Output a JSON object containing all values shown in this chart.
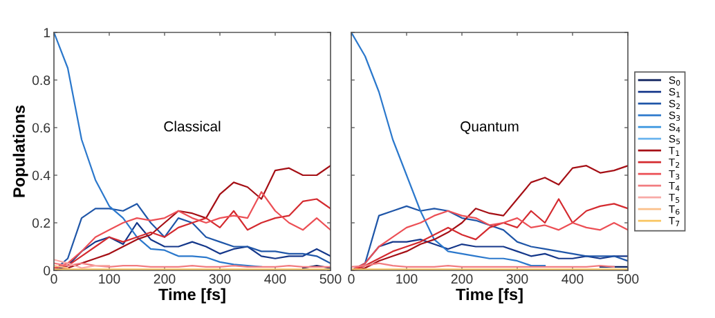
{
  "chart_data": [
    {
      "type": "line",
      "ylabel": "Populations",
      "xlabel": "Time [fs]",
      "annotations": [
        "Classical"
      ],
      "grid": false,
      "x": [
        0,
        25,
        50,
        75,
        100,
        125,
        150,
        175,
        200,
        225,
        250,
        275,
        300,
        325,
        350,
        375,
        400,
        425,
        450,
        475,
        500
      ],
      "xlim": [
        0,
        500
      ],
      "xticks": [
        0,
        100,
        200,
        300,
        400,
        500
      ],
      "ylim": [
        0,
        1
      ],
      "yticks": [
        0,
        0.2,
        0.4,
        0.6,
        0.8,
        1
      ],
      "series": [
        {
          "color": "#0b1f5c",
          "values": [
            null,
            null,
            null,
            null,
            null,
            null,
            null,
            null,
            null,
            null,
            null,
            null,
            null,
            null,
            null,
            null,
            null,
            null,
            0.01,
            0.02,
            0.01
          ]
        },
        {
          "color": "#14378a",
          "values": [
            0,
            0.02,
            0.08,
            0.12,
            0.14,
            0.11,
            0.2,
            0.13,
            0.1,
            0.1,
            0.12,
            0.1,
            0.07,
            0.09,
            0.1,
            0.06,
            0.05,
            0.06,
            0.06,
            0.09,
            0.06
          ]
        },
        {
          "color": "#1f56a8",
          "values": [
            0,
            0.05,
            0.22,
            0.26,
            0.26,
            0.25,
            0.28,
            0.2,
            0.14,
            0.22,
            0.2,
            0.14,
            0.12,
            0.1,
            0.1,
            0.08,
            0.08,
            0.07,
            0.07,
            0.06,
            0.03
          ]
        },
        {
          "color": "#2b78cc",
          "values": [
            1,
            0.85,
            0.55,
            0.38,
            0.27,
            0.22,
            0.14,
            0.09,
            0.085,
            0.06,
            0.06,
            0.055,
            0.035,
            0.025,
            0.02,
            0.015,
            null,
            null,
            null,
            null,
            null
          ]
        },
        {
          "color": "#3a96e0",
          "values": [
            null,
            null,
            null,
            null,
            null,
            null,
            null,
            null,
            null,
            null,
            null,
            null,
            null,
            null,
            null,
            null,
            null,
            null,
            null,
            null,
            null
          ]
        },
        {
          "color": "#69b3ee",
          "values": [
            null,
            null,
            null,
            null,
            null,
            null,
            null,
            null,
            null,
            null,
            null,
            null,
            null,
            null,
            null,
            null,
            null,
            null,
            null,
            null,
            null
          ]
        },
        {
          "color": "#a50f15",
          "values": [
            0,
            0.01,
            0.03,
            0.05,
            0.07,
            0.1,
            0.13,
            0.15,
            0.2,
            0.25,
            0.24,
            0.22,
            0.32,
            0.37,
            0.35,
            0.3,
            0.42,
            0.43,
            0.4,
            0.4,
            0.44
          ]
        },
        {
          "color": "#d42a2f",
          "values": [
            0.01,
            0.02,
            0.06,
            0.1,
            0.14,
            0.12,
            0.14,
            0.16,
            0.14,
            0.18,
            0.2,
            0.22,
            0.18,
            0.25,
            0.17,
            0.2,
            0.22,
            0.23,
            0.29,
            0.3,
            0.26
          ]
        },
        {
          "color": "#ec4f55",
          "values": [
            0.01,
            0.03,
            0.08,
            0.14,
            0.17,
            0.2,
            0.22,
            0.21,
            0.22,
            0.25,
            0.22,
            0.2,
            0.22,
            0.23,
            0.22,
            0.33,
            0.25,
            0.2,
            0.17,
            0.22,
            0.17
          ]
        },
        {
          "color": "#f27c80",
          "values": [
            0.03,
            0.02,
            0.03,
            0.02,
            0.015,
            0.02,
            0.02,
            0.015,
            0.015,
            0.015,
            0.02,
            0.015,
            0.015,
            0.02,
            0.015,
            0.015,
            0.015,
            0.02,
            0.015,
            0.015,
            0.015
          ]
        },
        {
          "color": "#f8a9a6",
          "values": [
            0.045,
            0.03,
            0.01,
            0.02,
            0.02,
            null,
            null,
            null,
            null,
            null,
            null,
            null,
            null,
            null,
            null,
            null,
            null,
            null,
            null,
            null,
            null
          ]
        },
        {
          "color": "#fbc08a",
          "values": [
            0.02,
            0.01,
            null,
            null,
            null,
            null,
            null,
            null,
            null,
            null,
            null,
            null,
            null,
            null,
            null,
            null,
            null,
            null,
            null,
            null,
            null
          ]
        },
        {
          "color": "#f9c560",
          "values": [
            0.005,
            0.005,
            0.005,
            0.005,
            0.005,
            0.005,
            0.005,
            0.005,
            0.005,
            0.005,
            0.005,
            0.005,
            0.005,
            0.005,
            0.005,
            0.005,
            0.005,
            0.005,
            0.005,
            0.005,
            0.005
          ]
        }
      ]
    },
    {
      "type": "line",
      "xlabel": "Time [fs]",
      "annotations": [
        "Quantum"
      ],
      "legend": "right",
      "grid": false,
      "tick_labels": "x",
      "x": [
        0,
        25,
        50,
        75,
        100,
        125,
        150,
        175,
        200,
        225,
        250,
        275,
        300,
        325,
        350,
        375,
        400,
        425,
        450,
        475,
        500
      ],
      "xlim": [
        0,
        500
      ],
      "xticks": [
        0,
        100,
        200,
        300,
        400,
        500
      ],
      "ylim": [
        0,
        1
      ],
      "yticks": [
        0,
        0.2,
        0.4,
        0.6,
        0.8,
        1
      ],
      "series": [
        {
          "name": "S$_{0}$",
          "color": "#0b1f5c",
          "values": [
            null,
            null,
            null,
            null,
            null,
            null,
            null,
            null,
            null,
            null,
            null,
            null,
            null,
            null,
            null,
            null,
            null,
            null,
            0.015,
            0.015,
            0.015
          ]
        },
        {
          "name": "S$_{1}$",
          "color": "#14378a",
          "values": [
            0,
            0.03,
            0.1,
            0.12,
            0.12,
            0.13,
            0.11,
            0.09,
            0.11,
            0.1,
            0.1,
            0.1,
            0.08,
            0.06,
            0.07,
            0.05,
            0.05,
            0.06,
            0.05,
            0.06,
            0.06
          ]
        },
        {
          "name": "S$_{2}$",
          "color": "#1f56a8",
          "values": [
            0,
            0.03,
            0.23,
            0.25,
            0.27,
            0.25,
            0.26,
            0.25,
            0.22,
            0.21,
            0.19,
            0.17,
            0.12,
            0.1,
            0.09,
            0.08,
            0.07,
            0.06,
            0.06,
            0.06,
            0.04
          ]
        },
        {
          "name": "S$_{3}$",
          "color": "#2b78cc",
          "values": [
            1,
            0.9,
            0.75,
            0.55,
            0.4,
            0.25,
            0.13,
            0.08,
            0.07,
            0.06,
            0.05,
            0.05,
            0.04,
            0.02,
            0.02,
            null,
            null,
            null,
            null,
            null,
            null
          ]
        },
        {
          "name": "S$_{4}$",
          "color": "#3a96e0",
          "values": [
            null,
            null,
            null,
            null,
            null,
            null,
            null,
            null,
            null,
            null,
            null,
            null,
            null,
            null,
            null,
            null,
            null,
            null,
            null,
            null,
            null
          ]
        },
        {
          "name": "S$_{5}$",
          "color": "#69b3ee",
          "values": [
            null,
            null,
            null,
            null,
            null,
            null,
            null,
            null,
            null,
            null,
            null,
            null,
            null,
            null,
            null,
            null,
            null,
            null,
            null,
            null,
            null
          ]
        },
        {
          "name": "T$_{1}$",
          "color": "#a50f15",
          "values": [
            0,
            0.01,
            0.04,
            0.06,
            0.08,
            0.11,
            0.13,
            0.16,
            0.2,
            0.26,
            0.24,
            0.23,
            0.3,
            0.37,
            0.39,
            0.36,
            0.43,
            0.44,
            0.41,
            0.42,
            0.44
          ]
        },
        {
          "name": "T$_{2}$",
          "color": "#d42a2f",
          "values": [
            0,
            0.02,
            0.05,
            0.08,
            0.1,
            0.12,
            0.15,
            0.18,
            0.15,
            0.13,
            0.18,
            0.2,
            0.18,
            0.25,
            0.2,
            0.3,
            0.2,
            0.25,
            0.27,
            0.28,
            0.26
          ]
        },
        {
          "name": "T$_{3}$",
          "color": "#ec4f55",
          "values": [
            0,
            0.03,
            0.1,
            0.14,
            0.18,
            0.2,
            0.23,
            0.25,
            0.23,
            0.22,
            0.19,
            0.2,
            0.22,
            0.18,
            0.19,
            0.17,
            0.2,
            0.18,
            0.17,
            0.2,
            0.17
          ]
        },
        {
          "name": "T$_{4}$",
          "color": "#f27c80",
          "values": [
            0.015,
            0.02,
            0.03,
            0.02,
            0.015,
            0.015,
            0.015,
            0.02,
            0.015,
            0.015,
            0.015,
            0.015,
            0.015,
            0.015,
            0.015,
            0.015,
            0.015,
            0.015,
            0.02,
            0.015,
            null
          ]
        },
        {
          "name": "T$_{5}$",
          "color": "#f8a9a6",
          "values": [
            null,
            null,
            null,
            null,
            null,
            null,
            null,
            null,
            null,
            null,
            null,
            null,
            null,
            null,
            null,
            null,
            null,
            null,
            null,
            null,
            null
          ]
        },
        {
          "name": "T$_{6}$",
          "color": "#fbc08a",
          "values": [
            null,
            null,
            null,
            null,
            null,
            null,
            null,
            null,
            null,
            null,
            null,
            null,
            null,
            null,
            null,
            null,
            null,
            null,
            null,
            null,
            null
          ]
        },
        {
          "name": "T$_{7}$",
          "color": "#f9c560",
          "values": [
            0.005,
            0.005,
            0.005,
            0.005,
            0.005,
            0.005,
            0.005,
            0.005,
            0.005,
            0.005,
            0.005,
            0.005,
            0.005,
            0.005,
            0.005,
            0.005,
            0.005,
            0.005,
            0.005,
            0.005,
            0.005
          ]
        }
      ]
    }
  ]
}
